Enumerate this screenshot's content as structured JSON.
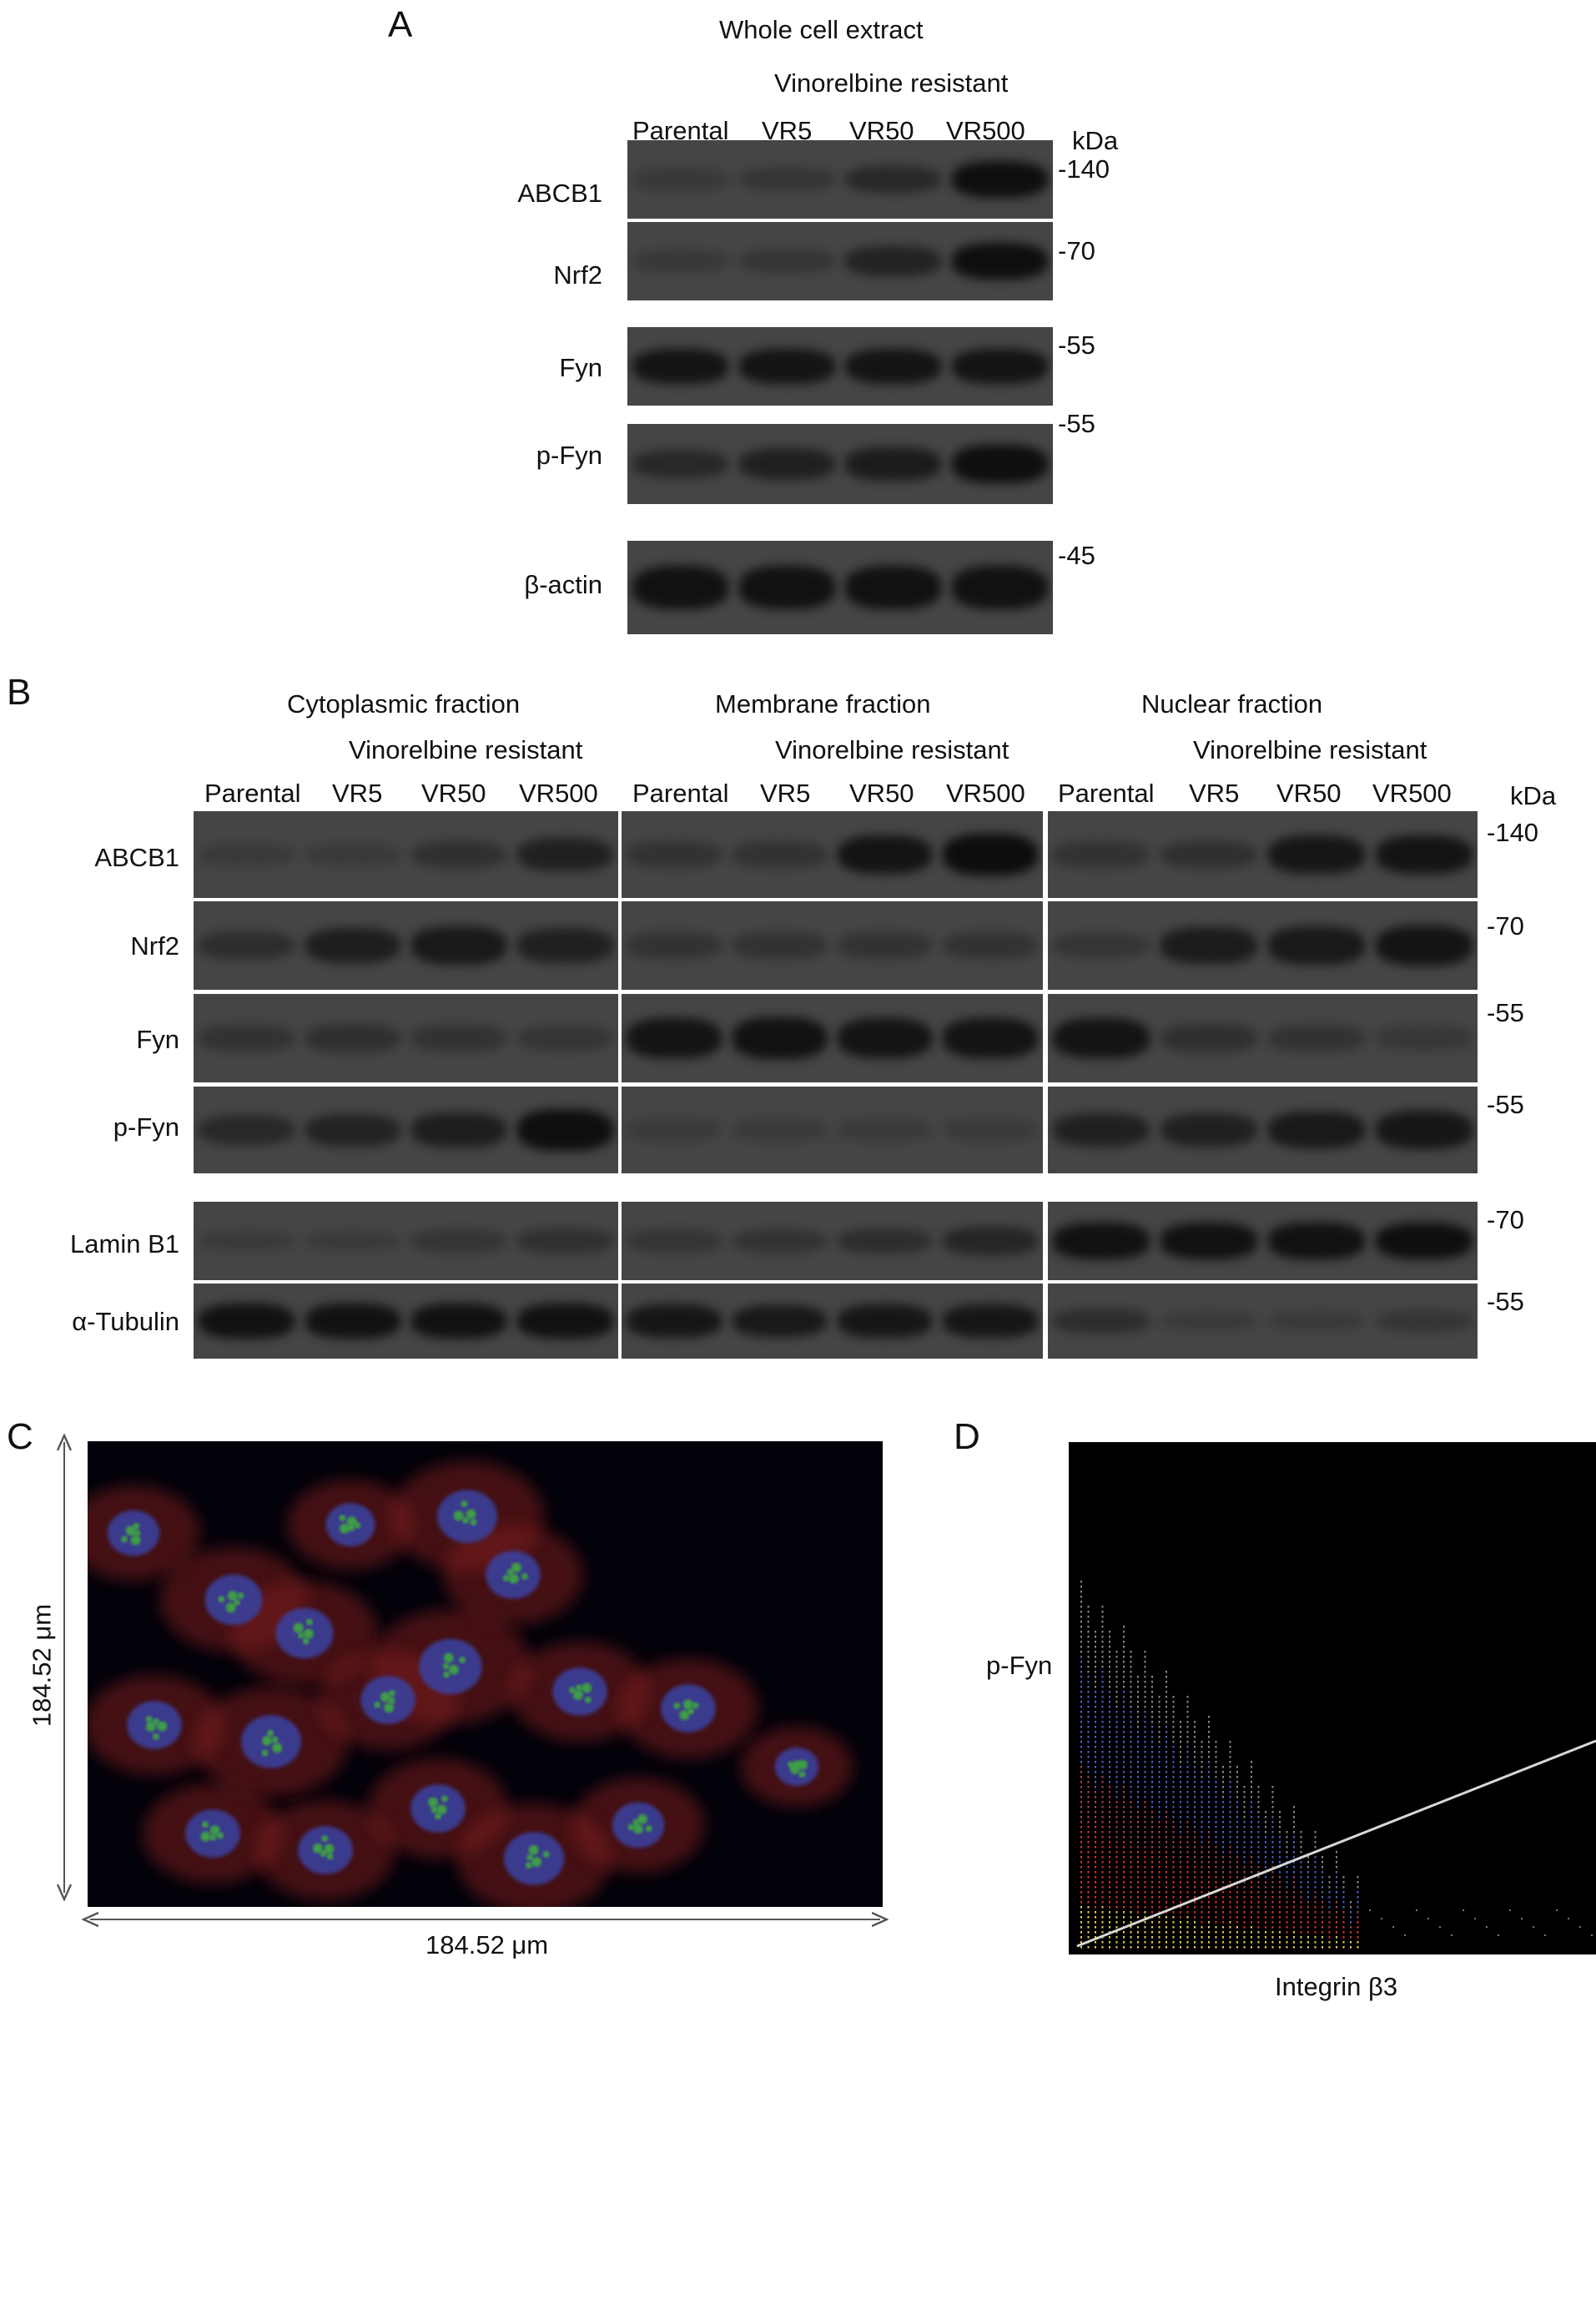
{
  "panels": {
    "a": {
      "letter": "A",
      "title": "Whole cell extract",
      "group_label": "Vinorelbine resistant",
      "lanes": [
        "Parental",
        "VR5",
        "VR50",
        "VR500"
      ],
      "kda_label": "kDa",
      "rows": [
        {
          "label": "ABCB1",
          "marker": "-140",
          "intensity": [
            0.1,
            0.15,
            0.4,
            0.9
          ]
        },
        {
          "label": "Nrf2",
          "marker": "-70",
          "intensity": [
            0.1,
            0.15,
            0.5,
            0.9
          ]
        },
        {
          "label": "Fyn",
          "marker": "-55",
          "intensity": [
            0.8,
            0.8,
            0.8,
            0.8
          ]
        },
        {
          "label": "p-Fyn",
          "marker": "-55",
          "intensity": [
            0.4,
            0.55,
            0.65,
            0.9
          ]
        },
        {
          "label": "β-actin",
          "marker": "-45",
          "intensity": [
            0.85,
            0.85,
            0.85,
            0.85
          ]
        }
      ]
    },
    "b": {
      "letter": "B",
      "kda_label": "kDa",
      "fractions": [
        {
          "title": "Cytoplasmic fraction",
          "group_label": "Vinorelbine resistant",
          "lanes": [
            "Parental",
            "VR5",
            "VR50",
            "VR500"
          ]
        },
        {
          "title": "Membrane fraction",
          "group_label": "Vinorelbine resistant",
          "lanes": [
            "Parental",
            "VR5",
            "VR50",
            "VR500"
          ]
        },
        {
          "title": "Nuclear fraction",
          "group_label": "Vinorelbine resistant",
          "lanes": [
            "Parental",
            "VR5",
            "VR50",
            "VR500"
          ]
        }
      ],
      "rows": [
        {
          "label": "ABCB1",
          "marker": "-140",
          "intensity": [
            [
              0.05,
              0.05,
              0.25,
              0.55
            ],
            [
              0.2,
              0.2,
              0.8,
              0.95
            ],
            [
              0.2,
              0.25,
              0.75,
              0.8
            ]
          ]
        },
        {
          "label": "Nrf2",
          "marker": "-70",
          "intensity": [
            [
              0.3,
              0.6,
              0.7,
              0.55
            ],
            [
              0.2,
              0.2,
              0.2,
              0.2
            ],
            [
              0.15,
              0.65,
              0.7,
              0.8
            ]
          ]
        },
        {
          "label": "Fyn",
          "marker": "-55",
          "intensity": [
            [
              0.2,
              0.25,
              0.2,
              0.15
            ],
            [
              0.8,
              0.85,
              0.8,
              0.8
            ],
            [
              0.8,
              0.25,
              0.2,
              0.1
            ]
          ]
        },
        {
          "label": "p-Fyn",
          "marker": "-55",
          "intensity": [
            [
              0.4,
              0.5,
              0.6,
              0.9
            ],
            [
              0.05,
              0.05,
              0.05,
              0.05
            ],
            [
              0.55,
              0.55,
              0.7,
              0.75
            ]
          ]
        },
        {
          "label": "Lamin B1",
          "marker": "-70",
          "intensity": [
            [
              0.05,
              0.05,
              0.15,
              0.25
            ],
            [
              0.15,
              0.2,
              0.3,
              0.45
            ],
            [
              0.85,
              0.85,
              0.85,
              0.9
            ]
          ]
        },
        {
          "label": "α-Tubulin",
          "marker": "-55",
          "intensity": [
            [
              0.85,
              0.85,
              0.85,
              0.85
            ],
            [
              0.75,
              0.7,
              0.75,
              0.75
            ],
            [
              0.3,
              0.05,
              0.05,
              0.15
            ]
          ]
        }
      ]
    },
    "c": {
      "letter": "C",
      "vertical_scale": "184.52 μm",
      "horizontal_scale": "184.52 μm"
    },
    "d": {
      "letter": "D",
      "y_label": "p-Fyn",
      "x_label": "Integrin β3"
    }
  },
  "colors": {
    "blot_background": "#454545",
    "band": "#0d0d0d",
    "nucleus": "#3b3f9c",
    "cytoplasm": "#7a1f1a",
    "puncta": "#3fae3a",
    "regression_line": "#d8d8d8"
  }
}
